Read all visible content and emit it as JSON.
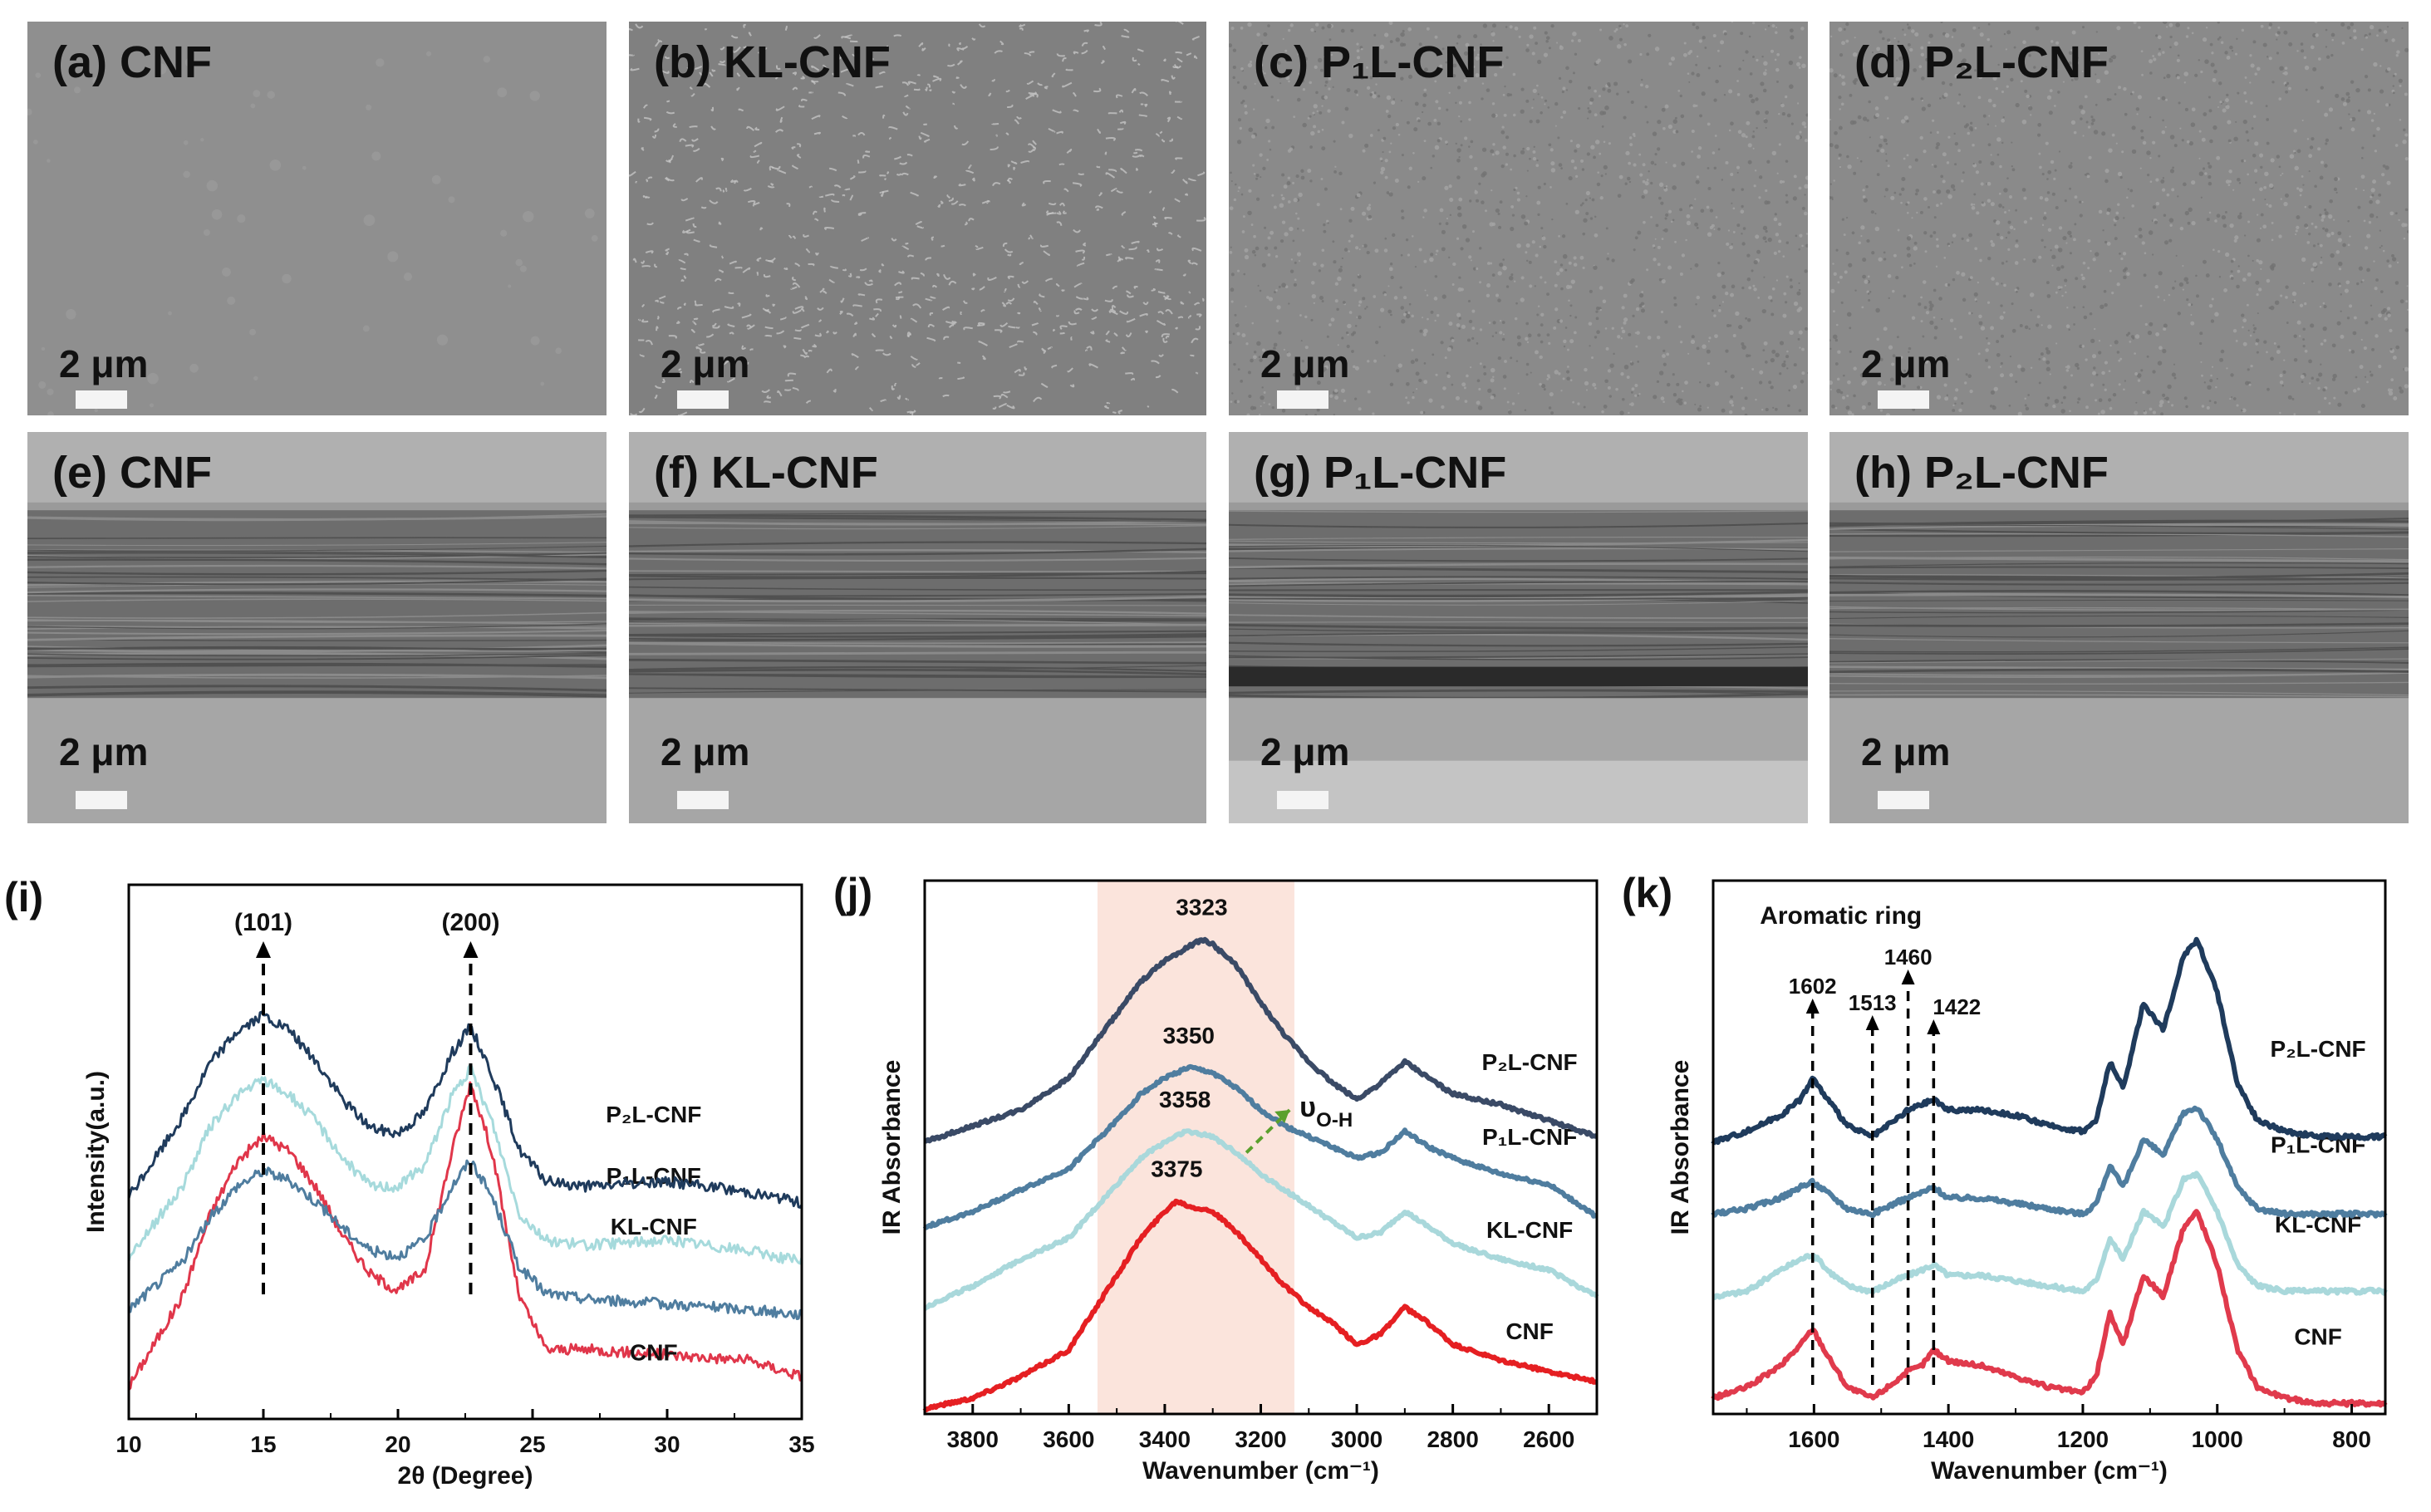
{
  "sem_panels": [
    {
      "label": "(a) CNF",
      "scale": "2 μm",
      "style": "smooth"
    },
    {
      "label": "(b) KL-CNF",
      "scale": "2 μm",
      "style": "rough"
    },
    {
      "label": "(c) P₁L-CNF",
      "scale": "2 μm",
      "style": "grainy"
    },
    {
      "label": "(d) P₂L-CNF",
      "scale": "2 μm",
      "style": "grainy"
    },
    {
      "label": "(e) CNF",
      "scale": "2 μm",
      "style": "cross"
    },
    {
      "label": "(f) KL-CNF",
      "scale": "2 μm",
      "style": "cross"
    },
    {
      "label": "(g) P₁L-CNF",
      "scale": "2 μm",
      "style": "cross-gap"
    },
    {
      "label": "(h) P₂L-CNF",
      "scale": "2 μm",
      "style": "cross"
    }
  ],
  "chart_data": [
    {
      "type": "line",
      "panel_label": "(i)",
      "xlabel": "2θ (Degree)",
      "ylabel": "Intensity(a.u.)",
      "xlim": [
        10,
        35
      ],
      "xticks": [
        10,
        15,
        20,
        25,
        30,
        35
      ],
      "ylim": [
        0,
        10
      ],
      "annotations": [
        {
          "text": "(101)",
          "x": 15
        },
        {
          "text": "(200)",
          "x": 22.7
        }
      ],
      "colors": {
        "CNF": "#e0364a",
        "KL-CNF": "#4f7d9f",
        "P₁L-CNF": "#a6dadc",
        "P₂L-CNF": "#1f3b5c"
      },
      "series": [
        {
          "name": "CNF",
          "offset": 0.0,
          "x": [
            10,
            12,
            13,
            14,
            15,
            16,
            17,
            18,
            19,
            20,
            21,
            22,
            22.7,
            23.5,
            24.5,
            25.5,
            27,
            30,
            33,
            35
          ],
          "values": [
            0.6,
            2.3,
            3.8,
            4.8,
            5.3,
            5.0,
            4.3,
            3.4,
            2.7,
            2.4,
            2.8,
            5.0,
            6.3,
            5.0,
            2.3,
            1.3,
            1.3,
            1.2,
            1.1,
            0.8
          ]
        },
        {
          "name": "KL-CNF",
          "offset": 1.75,
          "x": [
            10,
            12,
            13,
            14,
            15,
            16,
            17,
            18,
            19,
            20,
            21,
            22,
            22.7,
            23.5,
            24.5,
            25.5,
            27,
            30,
            33,
            35
          ],
          "values": [
            0.3,
            1.2,
            2.0,
            2.6,
            2.9,
            2.7,
            2.3,
            1.8,
            1.4,
            1.3,
            1.6,
            2.6,
            3.1,
            2.4,
            1.1,
            0.6,
            0.5,
            0.4,
            0.3,
            0.2
          ]
        },
        {
          "name": "P₁L-CNF",
          "offset": 2.75,
          "x": [
            10,
            12,
            13,
            14,
            15,
            16,
            17,
            18,
            19,
            20,
            21,
            22,
            22.7,
            23.5,
            24.5,
            25.5,
            27,
            30,
            33,
            35
          ],
          "values": [
            0.3,
            1.6,
            2.7,
            3.3,
            3.6,
            3.3,
            2.8,
            2.1,
            1.6,
            1.6,
            2.0,
            3.3,
            3.8,
            2.8,
            1.1,
            0.6,
            0.5,
            0.6,
            0.4,
            0.2
          ]
        },
        {
          "name": "P₂L-CNF",
          "offset": 3.85,
          "x": [
            10,
            12,
            13,
            14,
            15,
            16,
            17,
            18,
            19,
            20,
            21,
            22,
            22.7,
            23.5,
            24.5,
            25.5,
            27,
            30,
            33,
            35
          ],
          "values": [
            0.3,
            1.8,
            2.8,
            3.4,
            3.7,
            3.4,
            2.8,
            2.1,
            1.6,
            1.5,
            1.9,
            3.0,
            3.5,
            2.6,
            1.2,
            0.6,
            0.5,
            0.6,
            0.4,
            0.2
          ]
        }
      ]
    },
    {
      "type": "line",
      "panel_label": "(j)",
      "xlabel": "Wavenumber (cm⁻¹)",
      "ylabel": "IR Absorbance",
      "xlim": [
        3900,
        2500
      ],
      "xticks": [
        3800,
        3600,
        3400,
        3200,
        3000,
        2800,
        2600
      ],
      "ylim": [
        0,
        10
      ],
      "highlight_band": [
        3540,
        3130
      ],
      "band_color": "#fbe4dc",
      "peak_labels": [
        {
          "text": "3323",
          "x": 3323,
          "series": "P₂L-CNF"
        },
        {
          "text": "3350",
          "x": 3350,
          "series": "P₁L-CNF"
        },
        {
          "text": "3358",
          "x": 3358,
          "series": "KL-CNF"
        },
        {
          "text": "3375",
          "x": 3375,
          "series": "CNF"
        }
      ],
      "annotation": {
        "text": "υ",
        "sub": "O-H"
      },
      "colors": {
        "CNF": "#e51f22",
        "KL-CNF": "#a9d8db",
        "P₁L-CNF": "#4f7d9f",
        "P₂L-CNF": "#3a4a66"
      },
      "series": [
        {
          "name": "CNF",
          "offset": 0.0,
          "x": [
            3900,
            3800,
            3700,
            3600,
            3500,
            3450,
            3400,
            3375,
            3350,
            3300,
            3250,
            3200,
            3150,
            3100,
            3050,
            3000,
            2950,
            2900,
            2850,
            2800,
            2700,
            2600,
            2500
          ],
          "values": [
            0.1,
            0.3,
            0.7,
            1.2,
            2.6,
            3.3,
            3.8,
            4.0,
            3.9,
            3.8,
            3.4,
            2.9,
            2.4,
            2.0,
            1.7,
            1.3,
            1.5,
            2.0,
            1.7,
            1.3,
            1.0,
            0.8,
            0.6
          ]
        },
        {
          "name": "KL-CNF",
          "offset": 2.0,
          "x": [
            3900,
            3800,
            3700,
            3600,
            3500,
            3450,
            3400,
            3358,
            3300,
            3250,
            3200,
            3150,
            3100,
            3050,
            3000,
            2950,
            2900,
            2850,
            2800,
            2700,
            2600,
            2500
          ],
          "values": [
            0.0,
            0.4,
            0.9,
            1.3,
            2.3,
            2.8,
            3.1,
            3.3,
            3.2,
            2.9,
            2.5,
            2.2,
            1.9,
            1.6,
            1.3,
            1.4,
            1.8,
            1.5,
            1.2,
            0.9,
            0.7,
            0.2
          ]
        },
        {
          "name": "P₁L-CNF",
          "offset": 3.5,
          "x": [
            3900,
            3800,
            3700,
            3600,
            3500,
            3450,
            3400,
            3350,
            3300,
            3250,
            3200,
            3150,
            3100,
            3050,
            3000,
            2950,
            2900,
            2850,
            2800,
            2700,
            2600,
            2500
          ],
          "values": [
            0.0,
            0.3,
            0.7,
            1.1,
            2.0,
            2.5,
            2.8,
            3.0,
            2.9,
            2.6,
            2.2,
            1.9,
            1.7,
            1.5,
            1.3,
            1.4,
            1.8,
            1.5,
            1.3,
            1.0,
            0.8,
            0.2
          ]
        },
        {
          "name": "P₂L-CNF",
          "offset": 5.1,
          "x": [
            3900,
            3800,
            3700,
            3600,
            3500,
            3450,
            3400,
            3323,
            3300,
            3250,
            3200,
            3150,
            3100,
            3050,
            3000,
            2950,
            2900,
            2850,
            2800,
            2700,
            2600,
            2500
          ],
          "values": [
            0.0,
            0.3,
            0.6,
            1.2,
            2.4,
            3.0,
            3.4,
            3.8,
            3.7,
            3.3,
            2.6,
            2.0,
            1.5,
            1.1,
            0.8,
            1.1,
            1.5,
            1.2,
            0.9,
            0.7,
            0.4,
            0.1
          ]
        }
      ]
    },
    {
      "type": "line",
      "panel_label": "(k)",
      "xlabel": "Wavenumber (cm⁻¹)",
      "ylabel": "IR Absorbance",
      "xlim": [
        1750,
        750
      ],
      "xticks": [
        1600,
        1400,
        1200,
        1000,
        800
      ],
      "ylim": [
        0,
        10
      ],
      "title_annotation": "Aromatic ring",
      "peak_markers": [
        1602,
        1513,
        1460,
        1422
      ],
      "colors": {
        "CNF": "#e03a4c",
        "KL-CNF": "#a9d8db",
        "P₁L-CNF": "#4f7d9f",
        "P₂L-CNF": "#1f3b5c"
      },
      "series": [
        {
          "name": "CNF",
          "offset": 0.0,
          "x": [
            1750,
            1700,
            1650,
            1620,
            1602,
            1580,
            1550,
            1513,
            1480,
            1460,
            1440,
            1422,
            1400,
            1350,
            1300,
            1250,
            1200,
            1180,
            1160,
            1140,
            1110,
            1080,
            1050,
            1030,
            1000,
            970,
            940,
            900,
            850,
            800,
            750
          ],
          "values": [
            0.3,
            0.5,
            0.9,
            1.3,
            1.6,
            1.1,
            0.5,
            0.3,
            0.6,
            0.8,
            0.9,
            1.2,
            1.0,
            0.9,
            0.7,
            0.5,
            0.4,
            0.7,
            1.9,
            1.3,
            2.6,
            2.2,
            3.5,
            3.8,
            2.8,
            1.2,
            0.5,
            0.3,
            0.2,
            0.2,
            0.2
          ]
        },
        {
          "name": "KL-CNF",
          "offset": 2.0,
          "x": [
            1750,
            1700,
            1650,
            1620,
            1602,
            1580,
            1550,
            1513,
            1480,
            1460,
            1440,
            1422,
            1400,
            1350,
            1300,
            1250,
            1200,
            1180,
            1160,
            1140,
            1110,
            1080,
            1050,
            1030,
            1000,
            970,
            940,
            900,
            850,
            800,
            750
          ],
          "values": [
            0.2,
            0.3,
            0.7,
            0.9,
            1.0,
            0.7,
            0.4,
            0.3,
            0.5,
            0.6,
            0.7,
            0.8,
            0.6,
            0.6,
            0.5,
            0.4,
            0.3,
            0.5,
            1.3,
            0.9,
            1.8,
            1.5,
            2.4,
            2.5,
            1.8,
            0.8,
            0.4,
            0.3,
            0.3,
            0.3,
            0.3
          ]
        },
        {
          "name": "P₁L-CNF",
          "offset": 3.55,
          "x": [
            1750,
            1700,
            1650,
            1620,
            1602,
            1580,
            1550,
            1513,
            1480,
            1460,
            1440,
            1422,
            1400,
            1350,
            1300,
            1250,
            1200,
            1180,
            1160,
            1140,
            1110,
            1080,
            1050,
            1030,
            1000,
            970,
            940,
            900,
            850,
            800,
            750
          ],
          "values": [
            0.2,
            0.3,
            0.5,
            0.7,
            0.8,
            0.6,
            0.3,
            0.2,
            0.4,
            0.5,
            0.6,
            0.7,
            0.5,
            0.5,
            0.4,
            0.3,
            0.2,
            0.4,
            1.1,
            0.7,
            1.6,
            1.3,
            2.1,
            2.2,
            1.6,
            0.7,
            0.3,
            0.2,
            0.2,
            0.2,
            0.2
          ]
        },
        {
          "name": "P₂L-CNF",
          "offset": 5.0,
          "x": [
            1750,
            1700,
            1650,
            1620,
            1602,
            1580,
            1550,
            1513,
            1480,
            1460,
            1440,
            1422,
            1400,
            1350,
            1300,
            1250,
            1200,
            1180,
            1160,
            1140,
            1110,
            1080,
            1050,
            1030,
            1000,
            970,
            940,
            900,
            850,
            800,
            750
          ],
          "values": [
            0.1,
            0.3,
            0.6,
            0.9,
            1.3,
            0.9,
            0.4,
            0.2,
            0.5,
            0.7,
            0.8,
            0.9,
            0.7,
            0.7,
            0.6,
            0.4,
            0.3,
            0.5,
            1.6,
            1.1,
            2.7,
            2.2,
            3.6,
            3.9,
            2.9,
            1.2,
            0.5,
            0.3,
            0.2,
            0.2,
            0.2
          ]
        }
      ]
    }
  ]
}
